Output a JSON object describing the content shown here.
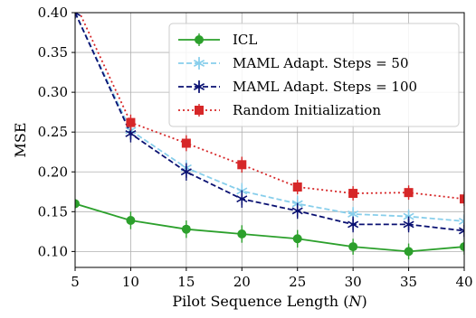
{
  "chart_data": {
    "type": "line",
    "title": "",
    "xlabel": "Pilot Sequence Length (N)",
    "xlabel_parts": [
      "Pilot Sequence Length (",
      "N",
      ")"
    ],
    "ylabel": "MSE",
    "xlim": [
      5,
      40
    ],
    "ylim": [
      0.08,
      0.4
    ],
    "x_ticks": [
      5,
      10,
      15,
      20,
      25,
      30,
      35,
      40
    ],
    "y_ticks": [
      0.1,
      0.15,
      0.2,
      0.25,
      0.3,
      0.35,
      0.4
    ],
    "y_tick_labels": [
      "0.10",
      "0.15",
      "0.20",
      "0.25",
      "0.30",
      "0.35",
      "0.40"
    ],
    "grid": true,
    "legend_position": "top-right",
    "x": [
      5,
      10,
      15,
      20,
      25,
      30,
      35,
      40
    ],
    "series": [
      {
        "name": "ICL",
        "color": "#2ca02c",
        "line_style": "solid",
        "marker": "circle",
        "values": [
          0.16,
          0.139,
          0.128,
          0.122,
          0.116,
          0.106,
          0.1,
          0.106
        ],
        "errors": [
          0.006,
          0.011,
          0.011,
          0.011,
          0.011,
          0.01,
          0.01,
          0.01
        ]
      },
      {
        "name": "MAML Adapt. Steps = 50",
        "color": "#87ceeb",
        "line_style": "dashed",
        "marker": "star",
        "values": [
          0.4,
          0.252,
          0.205,
          0.176,
          0.16,
          0.147,
          0.144,
          0.138
        ],
        "errors": [
          0.005,
          0.01,
          0.01,
          0.01,
          0.01,
          0.009,
          0.009,
          0.009
        ]
      },
      {
        "name": "MAML Adapt. Steps = 100",
        "color": "#0a1172",
        "line_style": "dashed",
        "marker": "star",
        "values": [
          0.4,
          0.248,
          0.2,
          0.166,
          0.151,
          0.134,
          0.134,
          0.126
        ],
        "errors": [
          0.005,
          0.011,
          0.011,
          0.011,
          0.01,
          0.01,
          0.01,
          0.01
        ]
      },
      {
        "name": "Random Initialization",
        "color": "#d62728",
        "line_style": "dotted",
        "marker": "square",
        "values": [
          0.412,
          0.262,
          0.236,
          0.209,
          0.181,
          0.173,
          0.174,
          0.166
        ],
        "errors": [
          0.005,
          0.01,
          0.01,
          0.01,
          0.009,
          0.009,
          0.009,
          0.009
        ]
      }
    ]
  }
}
